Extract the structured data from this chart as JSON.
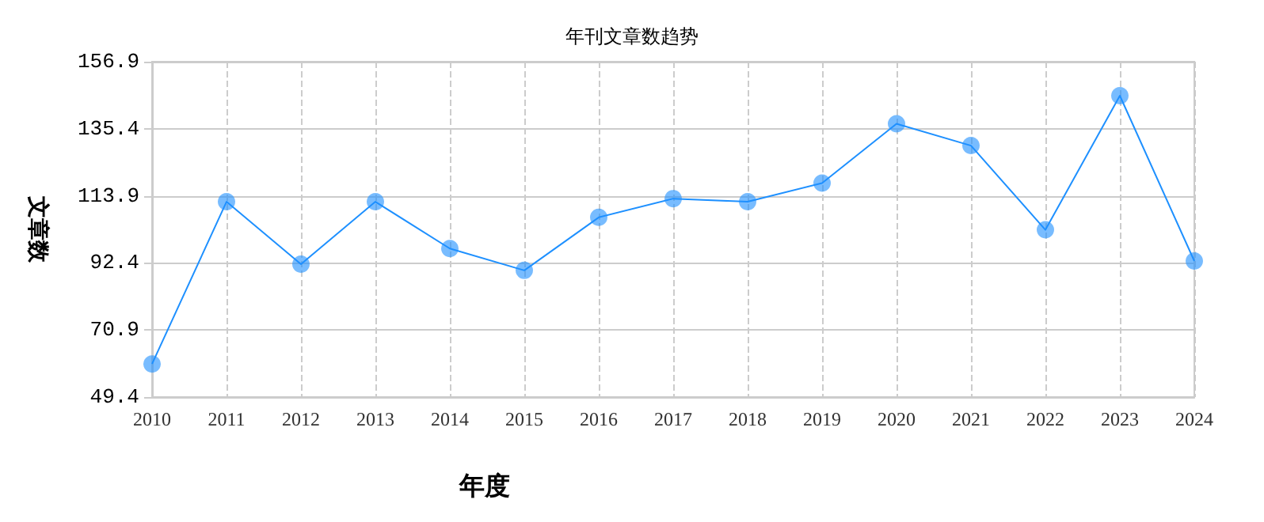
{
  "chart_data": {
    "type": "line",
    "title": "年刊文章数趋势",
    "xlabel": "年度",
    "ylabel": "文章数",
    "categories": [
      "2010",
      "2011",
      "2012",
      "2013",
      "2014",
      "2015",
      "2016",
      "2017",
      "2018",
      "2019",
      "2020",
      "2021",
      "2022",
      "2023",
      "2024"
    ],
    "series": [
      {
        "color": "#1e90ff",
        "values": [
          60,
          112,
          92,
          112,
          97,
          90,
          107,
          113,
          112,
          118,
          137,
          130,
          103,
          146,
          93
        ]
      }
    ],
    "ylim": [
      49.4,
      156.9
    ],
    "yticks": [
      49.4,
      70.9,
      92.4,
      113.9,
      135.4,
      156.9
    ],
    "grid": true,
    "marker": "circle",
    "line_style": "solid"
  }
}
